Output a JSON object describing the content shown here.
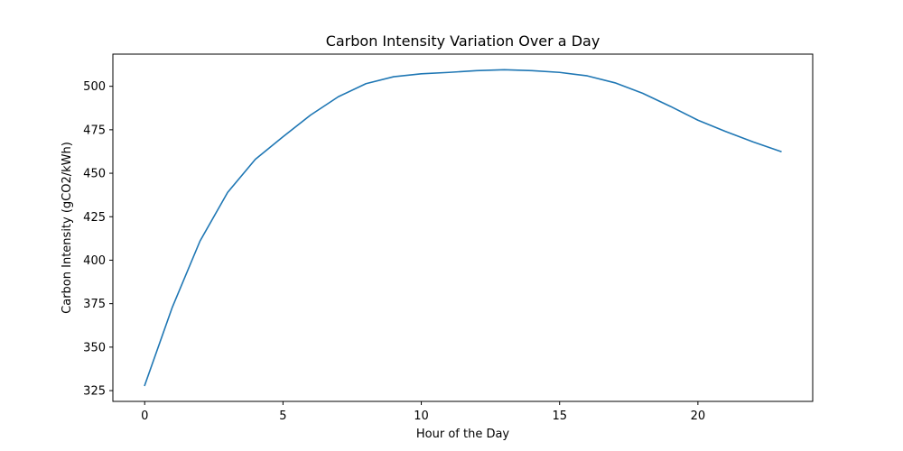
{
  "chart_data": {
    "type": "line",
    "title": "Carbon Intensity Variation Over a Day",
    "xlabel": "Hour of the Day",
    "ylabel": "Carbon Intensity (gCO2/kWh)",
    "xlim": [
      -1.15,
      24.15
    ],
    "ylim": [
      318.8,
      518.5
    ],
    "xticks": [
      0,
      5,
      10,
      15,
      20
    ],
    "yticks": [
      325,
      350,
      375,
      400,
      425,
      450,
      475,
      500
    ],
    "grid": false,
    "series": [
      {
        "color": "#1f77b4",
        "x": [
          0,
          1,
          2,
          3,
          4,
          5,
          6,
          7,
          8,
          9,
          10,
          11,
          12,
          13,
          14,
          15,
          16,
          17,
          18,
          19,
          20,
          21,
          22,
          23
        ],
        "y": [
          328,
          373,
          411,
          439,
          458,
          471,
          483.5,
          494,
          501.5,
          505.5,
          507.2,
          508,
          509,
          509.5,
          509,
          508,
          506,
          502,
          496,
          488.5,
          480.5,
          474,
          468,
          462.5
        ]
      }
    ]
  }
}
